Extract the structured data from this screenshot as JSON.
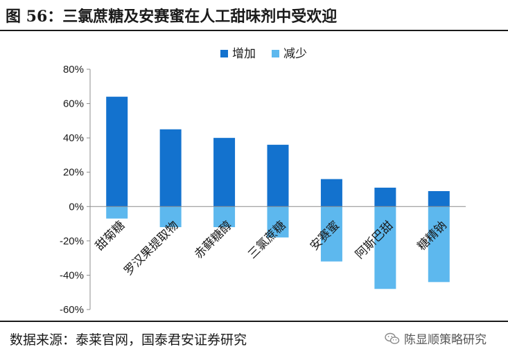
{
  "title": "图 56：三氯蔗糖及安赛蜜在人工甜味剂中受欢迎",
  "source": "数据来源：泰莱官网，国泰君安证券研究",
  "watermark": "陈显顺策略研究",
  "colors": {
    "increase": "#1372CE",
    "decrease": "#5DB8EE",
    "axis": "#8c8c8c"
  },
  "chart_data": {
    "type": "bar",
    "categories": [
      "甜菊糖",
      "罗汉果提取物",
      "赤藓糖醇",
      "三氯蔗糖",
      "安赛蜜",
      "阿斯巴甜",
      "糖精钠"
    ],
    "series": [
      {
        "name": "增加",
        "values": [
          64,
          45,
          40,
          36,
          16,
          11,
          9
        ]
      },
      {
        "name": "减少",
        "values": [
          -7,
          -12,
          -12,
          -18,
          -32,
          -48,
          -44
        ]
      }
    ],
    "ylim": [
      -60,
      80
    ],
    "yticks": [
      -60,
      -40,
      -20,
      0,
      20,
      40,
      60,
      80
    ],
    "ytick_format": "percent",
    "legend_position": "top-center",
    "xlabel": "",
    "ylabel": ""
  }
}
